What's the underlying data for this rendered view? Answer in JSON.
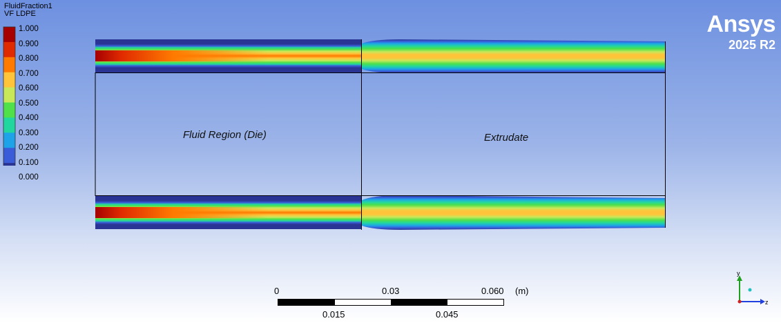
{
  "legend": {
    "title_line1": "FluidFraction1",
    "title_line2": "VF LDPE",
    "labels": [
      "1.000",
      "0.900",
      "0.800",
      "0.700",
      "0.600",
      "0.500",
      "0.400",
      "0.300",
      "0.200",
      "0.100",
      "0.000"
    ],
    "colors": [
      "#a60000",
      "#e02a00",
      "#ff7a00",
      "#ffc43a",
      "#c8e85a",
      "#4fe04a",
      "#22d6a0",
      "#1ea2e8",
      "#3a5cd8",
      "#2a3494"
    ]
  },
  "brand": {
    "name": "Ansys",
    "version": "2025 R2"
  },
  "regions": {
    "die_label": "Fluid Region (Die)",
    "extrudate_label": "Extrudate"
  },
  "scale": {
    "top_labels": [
      "0",
      "0.03",
      "0.060"
    ],
    "unit": "(m)",
    "bottom_labels": [
      "0.015",
      "0.045"
    ]
  },
  "axis_triad": {
    "y_label": "y",
    "z_label": "z"
  },
  "colors": {
    "background_top": "#6d90e0",
    "background_bottom": "#ffffff",
    "region_outline": "#000000"
  }
}
